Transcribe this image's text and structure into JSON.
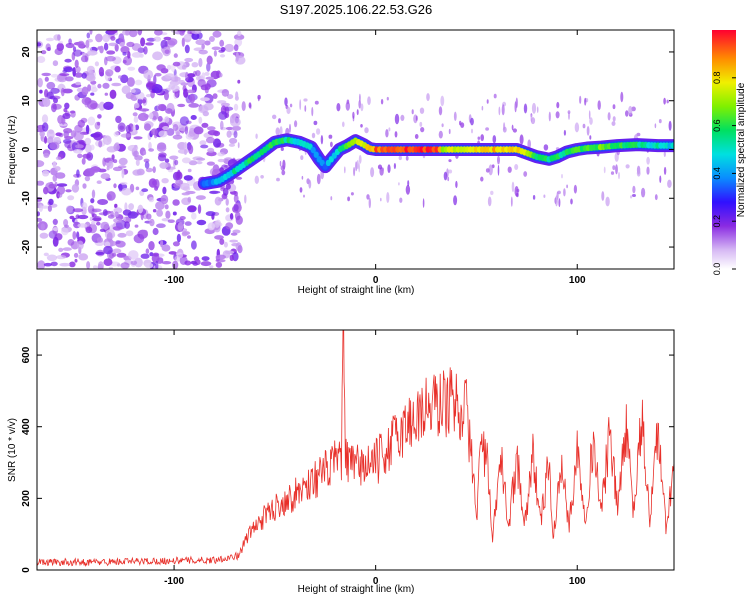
{
  "figure_title": "S197.2025.106.22.53.G26",
  "chart_data": [
    {
      "type": "heatmap",
      "title": "S197.2025.106.22.53.G26",
      "xlabel": "Height of straight line (km)",
      "ylabel": "Frequency (Hz)",
      "xlim": [
        -168,
        148
      ],
      "ylim": [
        -24.5,
        24.5
      ],
      "xticks": [
        -100,
        0,
        100
      ],
      "yticks": [
        -20,
        -10,
        0,
        10,
        20
      ],
      "colorbar": {
        "label": "Normalized spectral amplitude",
        "range": [
          0,
          1
        ],
        "ticks": [
          0.0,
          0.2,
          0.4,
          0.6,
          0.8
        ],
        "tick_labels": [
          "0.0",
          "0.2",
          "0.4",
          "0.6",
          "0.8"
        ],
        "colormap": "rainbow"
      },
      "noise_region_x": [
        -168,
        -75
      ],
      "ridge": {
        "x": [
          -85,
          -78,
          -72,
          -65,
          -58,
          -50,
          -44,
          -38,
          -32,
          -28,
          -25,
          -22,
          -18,
          -14,
          -10,
          -6,
          -3,
          0,
          5,
          10,
          20,
          30,
          34,
          40,
          50,
          60,
          70,
          80,
          86,
          90,
          95,
          100,
          105,
          112,
          120,
          130,
          140,
          148
        ],
        "y": [
          -7,
          -6.5,
          -5,
          -3,
          -1,
          1.5,
          2,
          1.5,
          0.5,
          -2,
          -3.5,
          -2,
          0,
          0.8,
          1.8,
          1,
          0.2,
          0,
          0,
          0,
          0,
          0,
          0,
          0,
          0,
          0,
          0,
          -1.5,
          -2,
          -1.5,
          -0.5,
          0,
          0.3,
          0.5,
          0.8,
          1,
          0.8,
          0.8
        ],
        "amplitude": [
          0.35,
          0.4,
          0.5,
          0.55,
          0.6,
          0.6,
          0.55,
          0.5,
          0.45,
          0.4,
          0.35,
          0.45,
          0.55,
          0.65,
          0.75,
          0.7,
          0.8,
          0.9,
          0.92,
          0.95,
          0.97,
          0.96,
          0.7,
          0.75,
          0.8,
          0.82,
          0.8,
          0.6,
          0.55,
          0.55,
          0.6,
          0.65,
          0.6,
          0.65,
          0.6,
          0.55,
          0.5,
          0.45
        ]
      }
    },
    {
      "type": "line",
      "xlabel": "Height of straight line (km)",
      "ylabel": "SNR (10 * v/v)",
      "xlim": [
        -168,
        148
      ],
      "ylim": [
        0,
        670
      ],
      "xticks": [
        -100,
        0,
        100
      ],
      "yticks": [
        0,
        200,
        400,
        600
      ],
      "series": [
        {
          "color": "#e8302a",
          "x": [
            -168,
            -140,
            -110,
            -80,
            -68,
            -64,
            -60,
            -55,
            -50,
            -45,
            -40,
            -35,
            -30,
            -25,
            -20,
            -17,
            -16,
            -15,
            -14,
            -12,
            -8,
            -4,
            0,
            5,
            10,
            15,
            20,
            25,
            30,
            35,
            40,
            45,
            48,
            50,
            52,
            55,
            58,
            62,
            66,
            70,
            74,
            78,
            82,
            86,
            88,
            92,
            96,
            100,
            104,
            108,
            112,
            116,
            120,
            124,
            128,
            132,
            136,
            140,
            144,
            148
          ],
          "y": [
            22,
            22,
            25,
            28,
            40,
            90,
            120,
            150,
            175,
            195,
            210,
            235,
            255,
            275,
            300,
            320,
            650,
            340,
            300,
            290,
            290,
            295,
            300,
            330,
            370,
            400,
            430,
            450,
            460,
            470,
            470,
            440,
            300,
            140,
            350,
            320,
            80,
            320,
            120,
            320,
            130,
            320,
            135,
            310,
            80,
            300,
            120,
            340,
            150,
            360,
            160,
            380,
            170,
            400,
            160,
            420,
            140,
            400,
            110,
            300
          ]
        }
      ]
    }
  ]
}
